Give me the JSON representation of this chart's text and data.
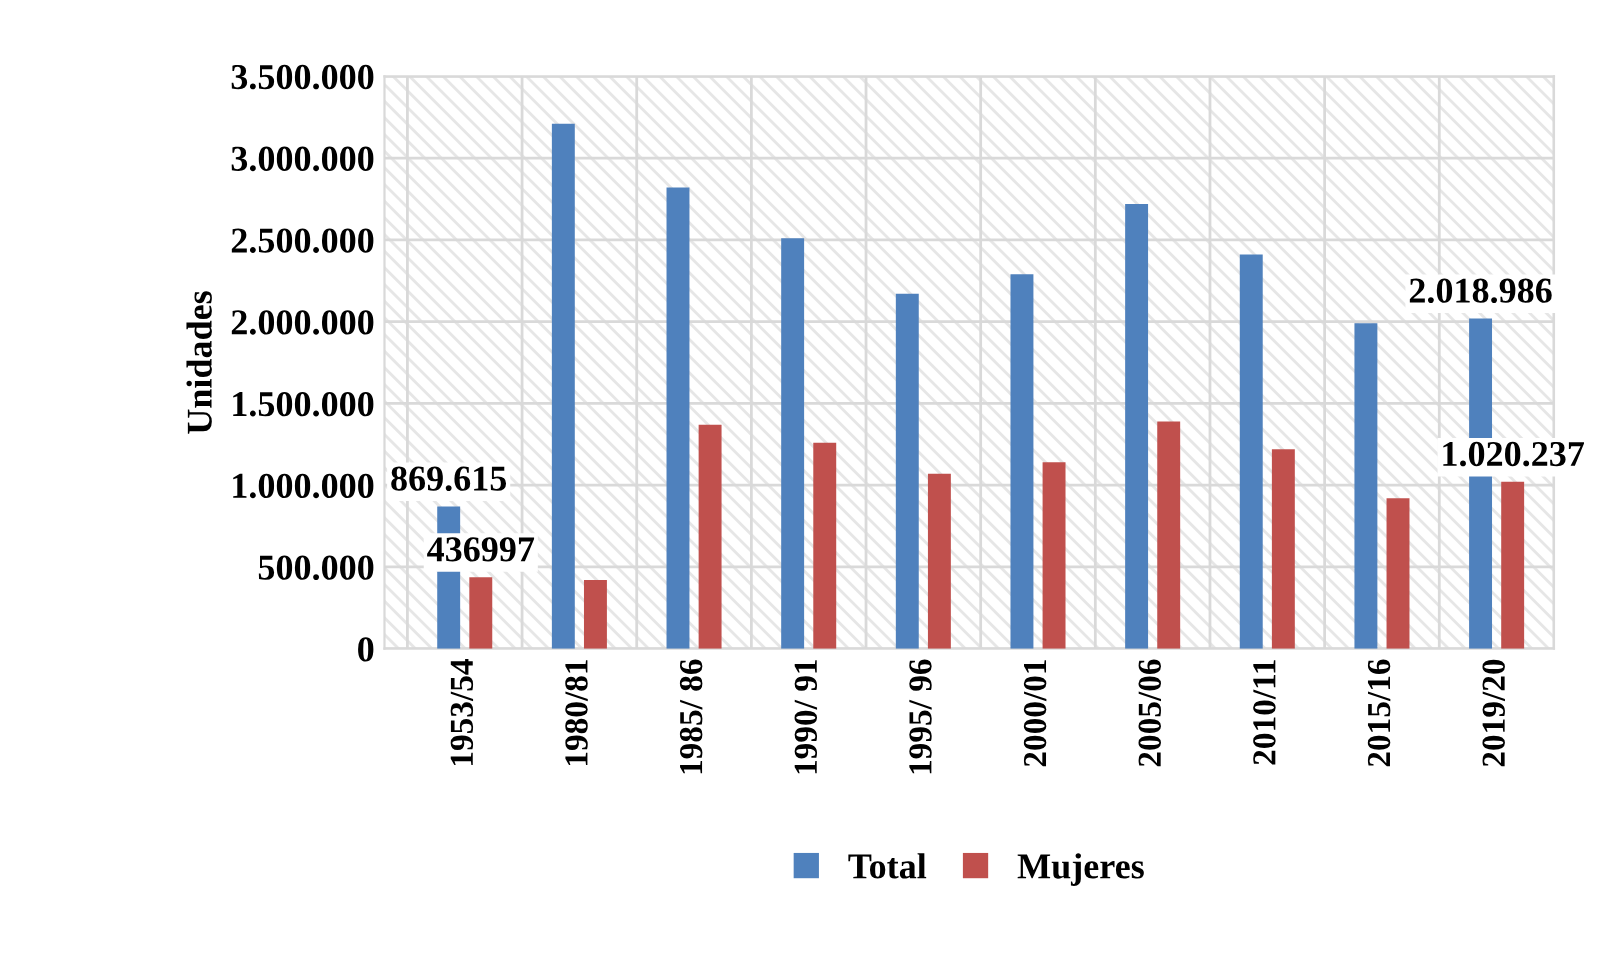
{
  "chart_data": {
    "type": "bar",
    "ylabel": "Unidades",
    "categories": [
      "1953/54",
      "1980/81",
      "1985/ 86",
      "1990/ 91",
      "1995/ 96",
      "2000/01",
      "2005/06",
      "2010/11",
      "2015/16",
      "2019/20"
    ],
    "series": [
      {
        "name": "Total",
        "color": "#4f81bd",
        "values": [
          869615,
          3210000,
          2820000,
          2510000,
          2170000,
          2290000,
          2720000,
          2410000,
          1990000,
          2018986
        ],
        "value_labels": [
          "869.615",
          null,
          null,
          null,
          null,
          null,
          null,
          null,
          null,
          "2.018.986"
        ]
      },
      {
        "name": "Mujeres",
        "color": "#c0504d",
        "values": [
          436997,
          420000,
          1370000,
          1260000,
          1070000,
          1140000,
          1390000,
          1220000,
          920000,
          1020237
        ],
        "value_labels": [
          "436997",
          null,
          null,
          null,
          null,
          null,
          null,
          null,
          null,
          "1.020.237"
        ]
      }
    ],
    "ylim": [
      0,
      3500000
    ],
    "yticks": [
      {
        "value": 0,
        "label": "0"
      },
      {
        "value": 500000,
        "label": "500.000"
      },
      {
        "value": 1000000,
        "label": "1.000.000"
      },
      {
        "value": 1500000,
        "label": "1.500.000"
      },
      {
        "value": 2000000,
        "label": "2.000.000"
      },
      {
        "value": 2500000,
        "label": "2.500.000"
      },
      {
        "value": 3000000,
        "label": "3.000.000"
      },
      {
        "value": 3500000,
        "label": "3.500.000"
      }
    ],
    "grid": true,
    "legend": "bottom"
  }
}
